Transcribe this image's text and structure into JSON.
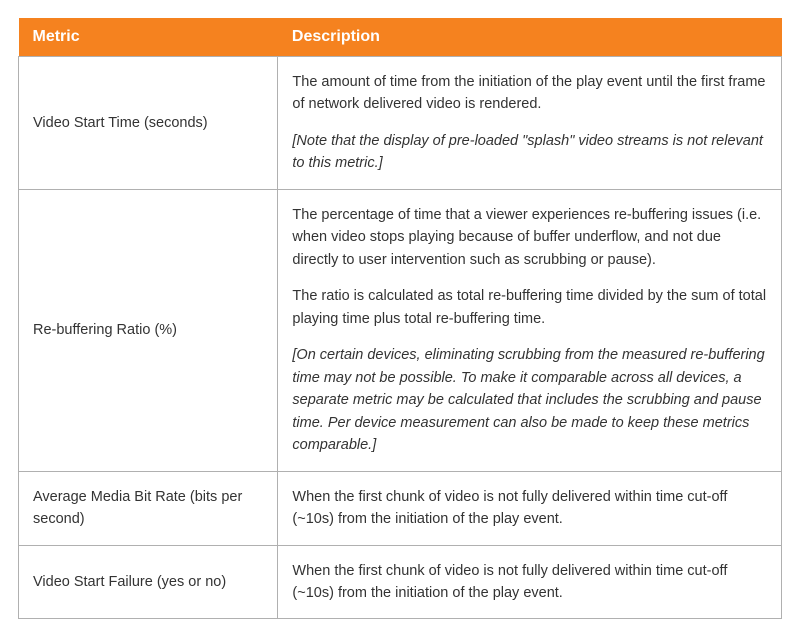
{
  "table": {
    "header_bg": "#f5821f",
    "header_text_color": "#ffffff",
    "border_color": "#b0b0b0",
    "body_text_color": "#333333",
    "font_size_header": 16,
    "font_size_body": 14.5,
    "columns": [
      {
        "label": "Metric",
        "width_pct": 34
      },
      {
        "label": "Description",
        "width_pct": 66
      }
    ],
    "rows": [
      {
        "metric": "Video Start Time (seconds)",
        "desc_p1": "The amount of time from the initiation of the play event until the first frame of network delivered video is rendered.",
        "desc_note": "[Note that the display of pre-loaded \"splash\" video streams is not relevant to this metric.]"
      },
      {
        "metric": "Re-buffering Ratio (%)",
        "desc_p1": "The percentage of time that a viewer experiences re-buffering issues (i.e. when video stops playing because of buffer underflow, and not due directly to user intervention such as scrubbing or pause).",
        "desc_p2": "The ratio is calculated as total re-buffering time divided by the sum of total playing time plus total re-buffering time.",
        "desc_note": "[On certain devices, eliminating scrubbing from the measured re-buffering time may not be possible.  To make it comparable across all devices, a separate metric may be calculated that includes the scrubbing and pause time.  Per device measurement can also be made to keep these metrics comparable.]"
      },
      {
        "metric": "Average Media Bit Rate (bits per second)",
        "desc_p1": "When the first chunk of video is not fully delivered within time cut-off (~10s) from the initiation of the play event."
      },
      {
        "metric": "Video Start Failure (yes or no)",
        "desc_p1": "When the first chunk of video is not fully delivered within time cut-off (~10s) from the initiation of the play event."
      }
    ]
  }
}
